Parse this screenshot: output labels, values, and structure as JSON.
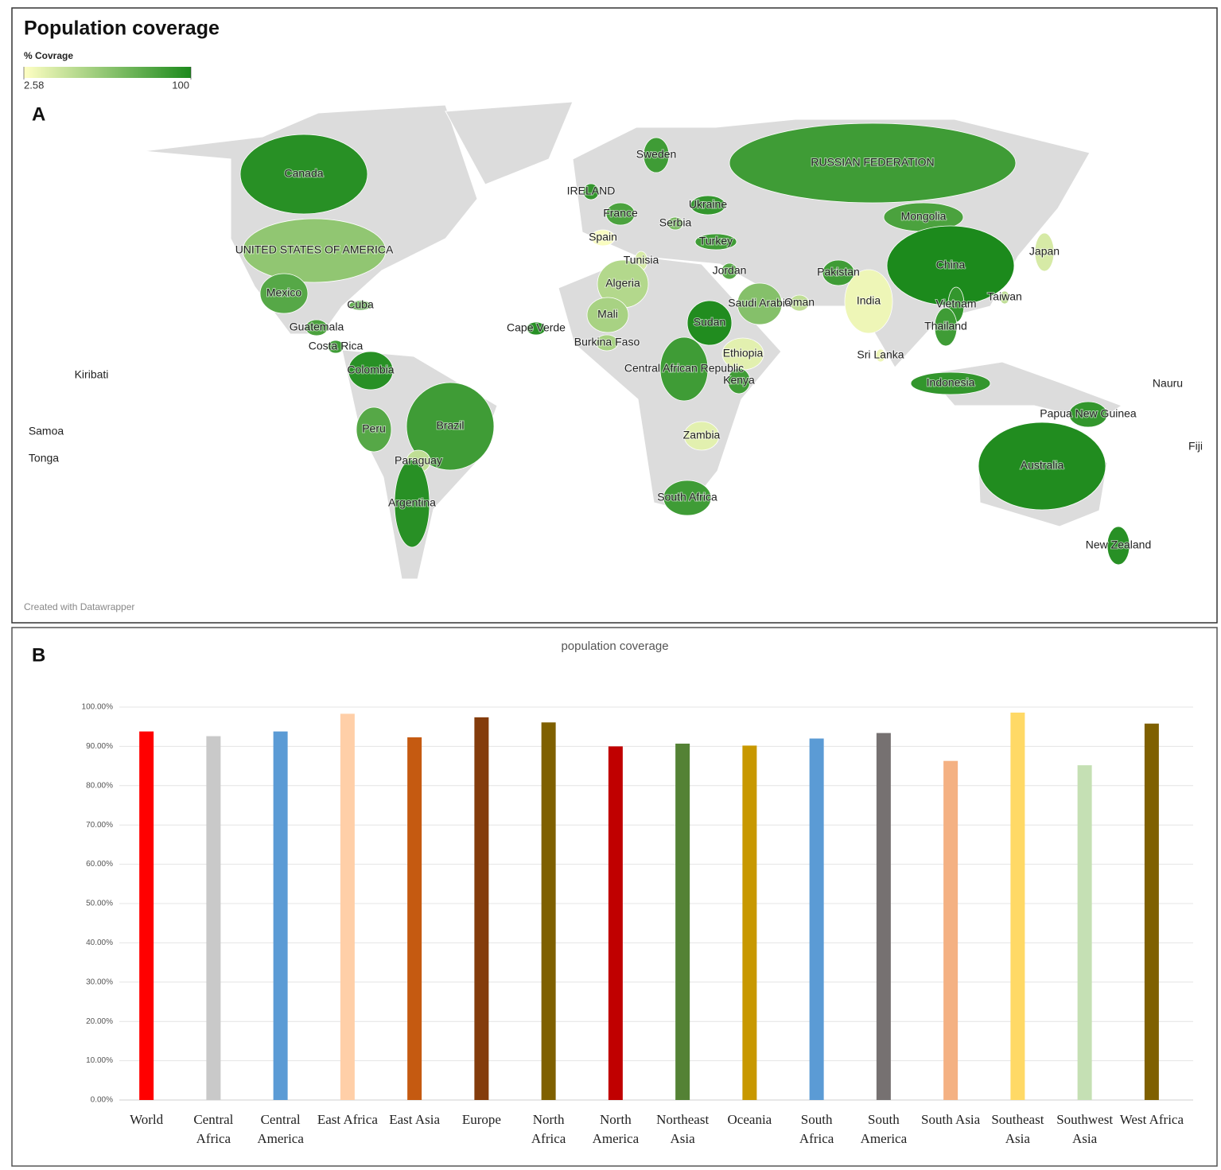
{
  "chart_data": [
    {
      "type": "map",
      "panel_label": "A",
      "title": "Population coverage",
      "legend_title": "% Covrage",
      "colorlim": [
        2.58,
        100
      ],
      "colorticks": [
        2.58,
        100
      ],
      "colors": [
        "#ffffc4",
        "#1c8a1c"
      ],
      "credit": "Created with Datawrapper",
      "regions": [
        {
          "name": "Canada",
          "value": 95
        },
        {
          "name": "UNITED STATES OF AMERICA",
          "value": 50
        },
        {
          "name": "Mexico",
          "value": 75
        },
        {
          "name": "Cuba",
          "value": 70
        },
        {
          "name": "Guatemala",
          "value": 80
        },
        {
          "name": "Costa Rica",
          "value": 85
        },
        {
          "name": "Colombia",
          "value": 95
        },
        {
          "name": "Peru",
          "value": 75
        },
        {
          "name": "Brazil",
          "value": 85
        },
        {
          "name": "Paraguay",
          "value": 30
        },
        {
          "name": "Argentina",
          "value": 95
        },
        {
          "name": "Kiribati",
          "value": null
        },
        {
          "name": "Samoa",
          "value": null
        },
        {
          "name": "Tonga",
          "value": null
        },
        {
          "name": "IRELAND",
          "value": 90
        },
        {
          "name": "Sweden",
          "value": 85
        },
        {
          "name": "France",
          "value": 80
        },
        {
          "name": "Spain",
          "value": 5
        },
        {
          "name": "Serbia",
          "value": 60
        },
        {
          "name": "Ukraine",
          "value": 90
        },
        {
          "name": "Turkey",
          "value": 85
        },
        {
          "name": "Tunisia",
          "value": 20
        },
        {
          "name": "Algeria",
          "value": 35
        },
        {
          "name": "Mali",
          "value": 40
        },
        {
          "name": "Burkina Faso",
          "value": 40
        },
        {
          "name": "Cape Verde",
          "value": 95
        },
        {
          "name": "Sudan",
          "value": 98
        },
        {
          "name": "Ethiopia",
          "value": 15
        },
        {
          "name": "Central African Republic",
          "value": 85
        },
        {
          "name": "Kenya",
          "value": 85
        },
        {
          "name": "Zambia",
          "value": 15
        },
        {
          "name": "South Africa",
          "value": 85
        },
        {
          "name": "Jordan",
          "value": 75
        },
        {
          "name": "Saudi Arabia",
          "value": 55
        },
        {
          "name": "Oman",
          "value": 30
        },
        {
          "name": "Pakistan",
          "value": 85
        },
        {
          "name": "India",
          "value": 10
        },
        {
          "name": "Sri Lanka",
          "value": 10
        },
        {
          "name": "RUSSIAN FEDERATION",
          "value": 85
        },
        {
          "name": "Mongolia",
          "value": 80
        },
        {
          "name": "China",
          "value": 100
        },
        {
          "name": "Japan",
          "value": 20
        },
        {
          "name": "Vietnam",
          "value": 90
        },
        {
          "name": "Taiwan",
          "value": 30
        },
        {
          "name": "Thailand",
          "value": 85
        },
        {
          "name": "Indonesia",
          "value": 90
        },
        {
          "name": "Papua New Guinea",
          "value": 90
        },
        {
          "name": "Australia",
          "value": 98
        },
        {
          "name": "New Zealand",
          "value": 95
        },
        {
          "name": "Nauru",
          "value": null
        },
        {
          "name": "Fiji",
          "value": null
        }
      ]
    },
    {
      "type": "bar",
      "panel_label": "B",
      "title": "population coverage",
      "categories": [
        "World",
        "Central Africa",
        "Central America",
        "East Africa",
        "East Asia",
        "Europe",
        "North Africa",
        "North America",
        "Northeast Asia",
        "Oceania",
        "South Africa",
        "South America",
        "South Asia",
        "Southeast Asia",
        "Southwest Asia",
        "West Africa"
      ],
      "values": [
        93.8,
        92.6,
        93.8,
        98.3,
        92.3,
        97.4,
        96.1,
        90.0,
        90.7,
        90.2,
        92.0,
        93.4,
        86.3,
        98.6,
        85.2,
        95.8
      ],
      "colors": [
        "#ff0000",
        "#c9c9c9",
        "#5b9bd5",
        "#ffcfa8",
        "#c55a11",
        "#843c0c",
        "#7f6000",
        "#c00000",
        "#548235",
        "#c89800",
        "#5b9bd5",
        "#767171",
        "#f4b183",
        "#ffd966",
        "#c5e0b4",
        "#7f6000"
      ],
      "ylim": [
        0,
        100
      ],
      "yticks": [
        {
          "value": 0,
          "label": "0.00%"
        },
        {
          "value": 10,
          "label": "10.00%"
        },
        {
          "value": 20,
          "label": "20.00%"
        },
        {
          "value": 30,
          "label": "30.00%"
        },
        {
          "value": 40,
          "label": "40.00%"
        },
        {
          "value": 50,
          "label": "50.00%"
        },
        {
          "value": 60,
          "label": "60.00%"
        },
        {
          "value": 70,
          "label": "70.00%"
        },
        {
          "value": 80,
          "label": "80.00%"
        },
        {
          "value": 90,
          "label": "90.00%"
        },
        {
          "value": 100,
          "label": "100.00%"
        }
      ],
      "grid": true
    }
  ]
}
